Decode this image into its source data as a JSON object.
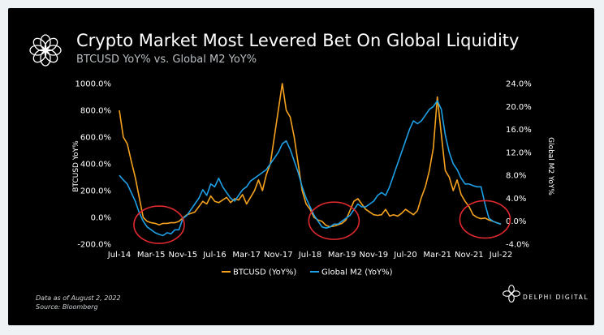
{
  "header": {
    "title": "Crypto Market Most Levered Bet On Global Liquidity",
    "subtitle": "BTCUSD YoY% vs. Global M2 YoY%"
  },
  "footer": {
    "data_as_of": "Data as of August 2, 2022",
    "source": "Source: Bloomberg",
    "brand": "DELPHI DIGITAL"
  },
  "colors": {
    "btc": "#f5a21e",
    "m2": "#1ea0e6",
    "highlight": "#e0292f",
    "axis_text": "#ffffff"
  },
  "icons": [
    "delphi-flower-logo-icon",
    "delphi-brand-logo-icon"
  ],
  "chart_data": {
    "type": "line",
    "ylabel": "BTCUSD YoY%",
    "y2label": "Global M2 YoY%",
    "ylim": [
      -200,
      1000
    ],
    "y2lim": [
      -4,
      24
    ],
    "yticks": [
      "1000.0%",
      "800.0%",
      "600.0%",
      "400.0%",
      "200.0%",
      "0.0%",
      "-200.0%"
    ],
    "y2ticks": [
      "24.0%",
      "20.0%",
      "16.0%",
      "12.0%",
      "8.0%",
      "4.0%",
      "0.0%",
      "-4.0%"
    ],
    "xlim": [
      "2014-07",
      "2022-07"
    ],
    "xticks": [
      "Jul-14",
      "Mar-15",
      "Nov-15",
      "Jul-16",
      "Mar-17",
      "Nov-17",
      "Jul-18",
      "Mar-19",
      "Nov-19",
      "Jul-20",
      "Mar-21",
      "Nov-21",
      "Jul-22"
    ],
    "grid": false,
    "legend": {
      "position": "bottom",
      "entries": [
        "BTCUSD (YoY%)",
        "Global M2 (YoY%)"
      ]
    },
    "series": [
      {
        "name": "BTCUSD (YoY%)",
        "axis": "left",
        "points": [
          [
            "2014-07",
            800
          ],
          [
            "2014-08",
            600
          ],
          [
            "2014-09",
            550
          ],
          [
            "2014-10",
            420
          ],
          [
            "2014-11",
            300
          ],
          [
            "2014-12",
            150
          ],
          [
            "2015-01",
            0
          ],
          [
            "2015-02",
            -30
          ],
          [
            "2015-03",
            -40
          ],
          [
            "2015-04",
            -45
          ],
          [
            "2015-05",
            -55
          ],
          [
            "2015-06",
            -45
          ],
          [
            "2015-07",
            -45
          ],
          [
            "2015-08",
            -40
          ],
          [
            "2015-09",
            -40
          ],
          [
            "2015-10",
            -30
          ],
          [
            "2015-11",
            -5
          ],
          [
            "2015-12",
            20
          ],
          [
            "2016-01",
            30
          ],
          [
            "2016-02",
            40
          ],
          [
            "2016-03",
            80
          ],
          [
            "2016-04",
            120
          ],
          [
            "2016-05",
            100
          ],
          [
            "2016-06",
            160
          ],
          [
            "2016-07",
            120
          ],
          [
            "2016-08",
            110
          ],
          [
            "2016-09",
            130
          ],
          [
            "2016-10",
            150
          ],
          [
            "2016-11",
            110
          ],
          [
            "2016-12",
            140
          ],
          [
            "2017-01",
            130
          ],
          [
            "2017-02",
            170
          ],
          [
            "2017-03",
            100
          ],
          [
            "2017-04",
            150
          ],
          [
            "2017-05",
            200
          ],
          [
            "2017-06",
            280
          ],
          [
            "2017-07",
            200
          ],
          [
            "2017-08",
            320
          ],
          [
            "2017-09",
            400
          ],
          [
            "2017-10",
            600
          ],
          [
            "2017-11",
            800
          ],
          [
            "2017-12",
            1000
          ],
          [
            "2018-01",
            800
          ],
          [
            "2018-02",
            750
          ],
          [
            "2018-03",
            600
          ],
          [
            "2018-04",
            400
          ],
          [
            "2018-05",
            200
          ],
          [
            "2018-06",
            100
          ],
          [
            "2018-07",
            60
          ],
          [
            "2018-08",
            0
          ],
          [
            "2018-09",
            -20
          ],
          [
            "2018-10",
            -30
          ],
          [
            "2018-11",
            -60
          ],
          [
            "2018-12",
            -70
          ],
          [
            "2019-01",
            -65
          ],
          [
            "2019-02",
            -55
          ],
          [
            "2019-03",
            -45
          ],
          [
            "2019-04",
            -20
          ],
          [
            "2019-05",
            50
          ],
          [
            "2019-06",
            120
          ],
          [
            "2019-07",
            140
          ],
          [
            "2019-08",
            100
          ],
          [
            "2019-09",
            60
          ],
          [
            "2019-10",
            40
          ],
          [
            "2019-11",
            20
          ],
          [
            "2019-12",
            15
          ],
          [
            "2020-01",
            20
          ],
          [
            "2020-02",
            60
          ],
          [
            "2020-03",
            10
          ],
          [
            "2020-04",
            20
          ],
          [
            "2020-05",
            10
          ],
          [
            "2020-06",
            30
          ],
          [
            "2020-07",
            60
          ],
          [
            "2020-08",
            40
          ],
          [
            "2020-09",
            20
          ],
          [
            "2020-10",
            50
          ],
          [
            "2020-11",
            150
          ],
          [
            "2020-12",
            230
          ],
          [
            "2021-01",
            350
          ],
          [
            "2021-02",
            520
          ],
          [
            "2021-03",
            900
          ],
          [
            "2021-04",
            620
          ],
          [
            "2021-05",
            350
          ],
          [
            "2021-06",
            300
          ],
          [
            "2021-07",
            200
          ],
          [
            "2021-08",
            280
          ],
          [
            "2021-09",
            170
          ],
          [
            "2021-10",
            120
          ],
          [
            "2021-11",
            80
          ],
          [
            "2021-12",
            20
          ],
          [
            "2022-01",
            0
          ],
          [
            "2022-02",
            -10
          ],
          [
            "2022-03",
            -5
          ],
          [
            "2022-04",
            -20
          ],
          [
            "2022-05",
            -30
          ],
          [
            "2022-06",
            -40
          ],
          [
            "2022-07",
            -50
          ]
        ]
      },
      {
        "name": "Global M2 (YoY%)",
        "axis": "right",
        "points": [
          [
            "2014-07",
            8.0
          ],
          [
            "2014-08",
            7.2
          ],
          [
            "2014-09",
            6.5
          ],
          [
            "2014-10",
            5.0
          ],
          [
            "2014-11",
            3.5
          ],
          [
            "2014-12",
            1.5
          ],
          [
            "2015-01",
            0.0
          ],
          [
            "2015-02",
            -1.0
          ],
          [
            "2015-03",
            -1.5
          ],
          [
            "2015-04",
            -2.0
          ],
          [
            "2015-05",
            -2.3
          ],
          [
            "2015-06",
            -2.5
          ],
          [
            "2015-07",
            -2.0
          ],
          [
            "2015-08",
            -2.2
          ],
          [
            "2015-09",
            -1.5
          ],
          [
            "2015-10",
            -1.5
          ],
          [
            "2015-11",
            0.5
          ],
          [
            "2015-12",
            1.0
          ],
          [
            "2016-01",
            2.0
          ],
          [
            "2016-02",
            3.0
          ],
          [
            "2016-03",
            4.0
          ],
          [
            "2016-04",
            5.5
          ],
          [
            "2016-05",
            4.5
          ],
          [
            "2016-06",
            6.5
          ],
          [
            "2016-07",
            6.0
          ],
          [
            "2016-08",
            7.5
          ],
          [
            "2016-09",
            6.0
          ],
          [
            "2016-10",
            5.0
          ],
          [
            "2016-11",
            4.0
          ],
          [
            "2016-12",
            3.5
          ],
          [
            "2017-01",
            4.5
          ],
          [
            "2017-02",
            5.5
          ],
          [
            "2017-03",
            6.0
          ],
          [
            "2017-04",
            7.0
          ],
          [
            "2017-05",
            7.5
          ],
          [
            "2017-06",
            8.0
          ],
          [
            "2017-07",
            8.5
          ],
          [
            "2017-08",
            9.0
          ],
          [
            "2017-09",
            10.0
          ],
          [
            "2017-10",
            11.0
          ],
          [
            "2017-11",
            12.0
          ],
          [
            "2017-12",
            13.5
          ],
          [
            "2018-01",
            14.0
          ],
          [
            "2018-02",
            12.5
          ],
          [
            "2018-03",
            10.5
          ],
          [
            "2018-04",
            8.5
          ],
          [
            "2018-05",
            6.0
          ],
          [
            "2018-06",
            4.0
          ],
          [
            "2018-07",
            2.5
          ],
          [
            "2018-08",
            1.0
          ],
          [
            "2018-09",
            0.0
          ],
          [
            "2018-10",
            -1.0
          ],
          [
            "2018-11",
            -1.2
          ],
          [
            "2018-12",
            -1.0
          ],
          [
            "2019-01",
            -0.5
          ],
          [
            "2019-02",
            -0.5
          ],
          [
            "2019-03",
            0.0
          ],
          [
            "2019-04",
            0.5
          ],
          [
            "2019-05",
            1.0
          ],
          [
            "2019-06",
            2.0
          ],
          [
            "2019-07",
            3.0
          ],
          [
            "2019-08",
            2.5
          ],
          [
            "2019-09",
            2.5
          ],
          [
            "2019-10",
            3.0
          ],
          [
            "2019-11",
            3.5
          ],
          [
            "2019-12",
            4.5
          ],
          [
            "2020-01",
            5.0
          ],
          [
            "2020-02",
            4.5
          ],
          [
            "2020-03",
            6.0
          ],
          [
            "2020-04",
            8.0
          ],
          [
            "2020-05",
            10.0
          ],
          [
            "2020-06",
            12.0
          ],
          [
            "2020-07",
            14.0
          ],
          [
            "2020-08",
            16.0
          ],
          [
            "2020-09",
            17.5
          ],
          [
            "2020-10",
            17.0
          ],
          [
            "2020-11",
            17.5
          ],
          [
            "2020-12",
            18.5
          ],
          [
            "2021-01",
            19.5
          ],
          [
            "2021-02",
            20.0
          ],
          [
            "2021-03",
            21.0
          ],
          [
            "2021-04",
            19.5
          ],
          [
            "2021-05",
            15.0
          ],
          [
            "2021-06",
            12.0
          ],
          [
            "2021-07",
            10.0
          ],
          [
            "2021-08",
            9.0
          ],
          [
            "2021-09",
            7.5
          ],
          [
            "2021-10",
            6.5
          ],
          [
            "2021-11",
            6.5
          ],
          [
            "2021-12",
            6.2
          ],
          [
            "2022-01",
            6.0
          ],
          [
            "2022-02",
            6.0
          ],
          [
            "2022-03",
            3.0
          ],
          [
            "2022-04",
            0.5
          ],
          [
            "2022-05",
            0.0
          ],
          [
            "2022-06",
            -0.3
          ],
          [
            "2022-07",
            -0.5
          ]
        ]
      }
    ],
    "highlights": [
      {
        "x": "2015-05",
        "y": -55
      },
      {
        "x": "2019-01",
        "y": -25
      },
      {
        "x": "2022-03",
        "y": -15
      }
    ]
  }
}
